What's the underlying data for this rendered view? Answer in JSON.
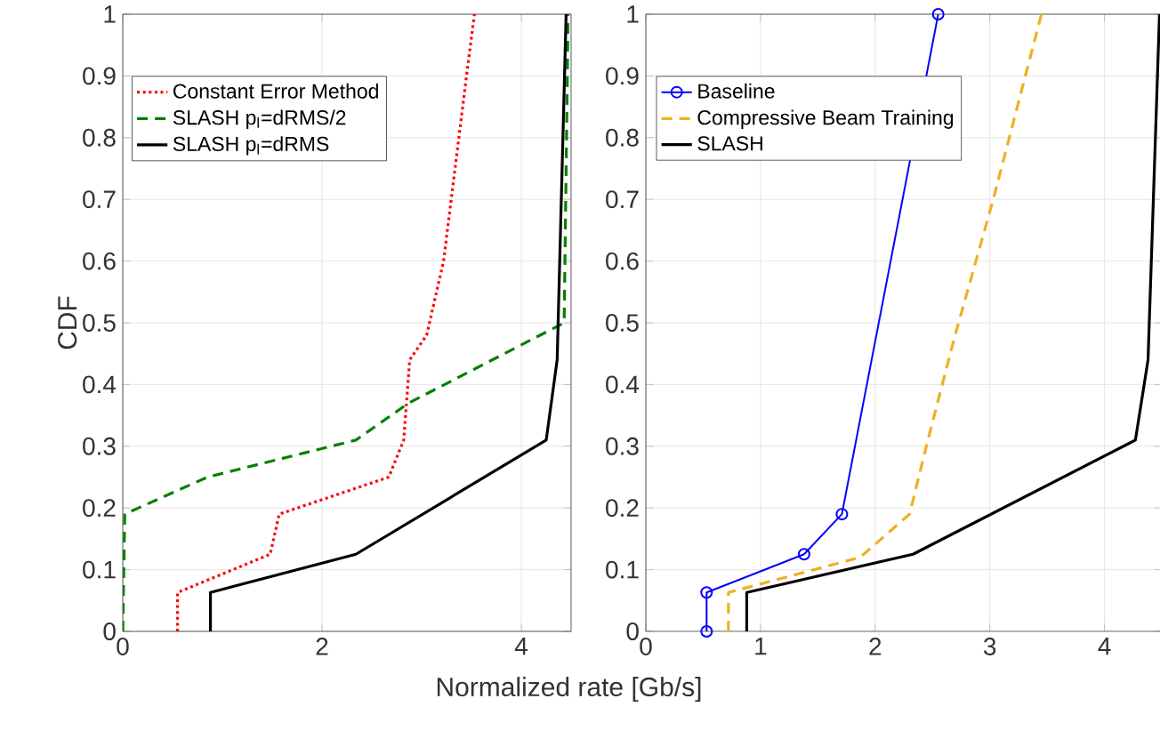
{
  "chart_data": [
    {
      "type": "line",
      "ylabel": "CDF",
      "xlabel": "Normalized rate [Gb/s]",
      "xlim": [
        0,
        4.5
      ],
      "ylim": [
        0,
        1
      ],
      "xticks": [
        0,
        2,
        4
      ],
      "yticks": [
        0,
        0.1,
        0.2,
        0.3,
        0.4,
        0.5,
        0.6,
        0.7,
        0.8,
        0.9,
        1
      ],
      "grid": true,
      "legend": "top left",
      "series": [
        {
          "name": "Constant Error Method",
          "color": "#ff0000",
          "line_style": "dotted",
          "x": [
            0.55,
            0.55,
            1.48,
            1.57,
            2.67,
            2.82,
            2.88,
            3.05,
            3.22,
            3.45,
            3.53
          ],
          "values": [
            0,
            0.063,
            0.125,
            0.19,
            0.25,
            0.31,
            0.44,
            0.48,
            0.6,
            0.9,
            1.0
          ]
        },
        {
          "name": "SLASH p$_{l}$=dRMS/2",
          "color": "#008000",
          "line_style": "dashed",
          "x": [
            0,
            0.02,
            0.85,
            2.34,
            2.87,
            4.43,
            4.47
          ],
          "values": [
            0,
            0.19,
            0.25,
            0.31,
            0.37,
            0.5,
            1.0
          ]
        },
        {
          "name": "SLASH p$_{l}$=dRMS",
          "color": "#000000",
          "line_style": "solid",
          "x": [
            0.88,
            0.88,
            2.34,
            4.25,
            4.36,
            4.45
          ],
          "values": [
            0,
            0.063,
            0.125,
            0.31,
            0.44,
            1.0
          ]
        }
      ]
    },
    {
      "type": "line",
      "xlim": [
        0,
        4.5
      ],
      "ylim": [
        0,
        1
      ],
      "xticks": [
        0,
        1,
        2,
        3,
        4
      ],
      "yticks": [
        0,
        0.1,
        0.2,
        0.3,
        0.4,
        0.5,
        0.6,
        0.7,
        0.8,
        0.9,
        1
      ],
      "grid": true,
      "legend": "top left",
      "series": [
        {
          "name": "Baseline",
          "color": "#0000ff",
          "line_style": "solid",
          "marker": "circle",
          "x": [
            0.53,
            0.53,
            1.38,
            1.71,
            2.55
          ],
          "values": [
            0,
            0.063,
            0.125,
            0.19,
            1.0
          ]
        },
        {
          "name": "Compressive Beam Training",
          "color": "#edb120",
          "line_style": "dashed",
          "x": [
            0.72,
            0.72,
            1.87,
            2.3,
            2.46,
            2.69,
            3.03,
            3.45
          ],
          "values": [
            0,
            0.063,
            0.12,
            0.19,
            0.31,
            0.475,
            0.7,
            1.0
          ]
        },
        {
          "name": "SLASH",
          "color": "#000000",
          "line_style": "solid",
          "x": [
            0.88,
            0.88,
            2.33,
            4.27,
            4.38,
            4.48
          ],
          "values": [
            0,
            0.063,
            0.125,
            0.31,
            0.44,
            1.0
          ]
        }
      ]
    }
  ]
}
